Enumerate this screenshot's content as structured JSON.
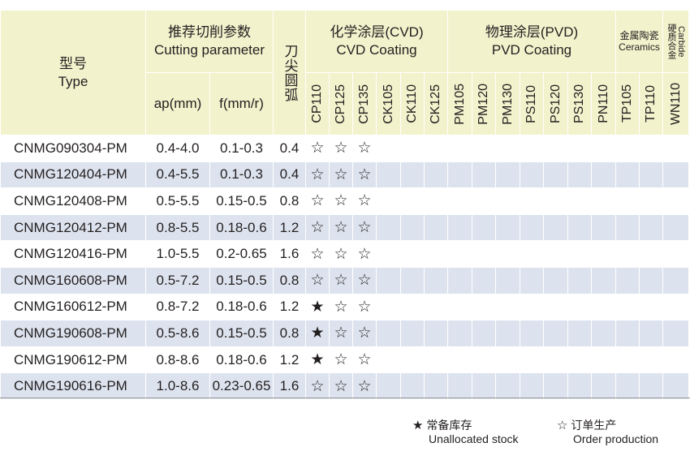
{
  "header": {
    "type_cn": "型号",
    "type_en": "Type",
    "cutting_cn": "推荐切削参数",
    "cutting_en": "Cutting parameter",
    "ap": "ap(mm)",
    "f": "f(mm/r)",
    "radius_cn": "刀尖圆弧",
    "cvd_cn": "化学涂层(CVD)",
    "cvd_en": "CVD Coating",
    "pvd_cn": "物理涂层(PVD)",
    "pvd_en": "PVD Coating",
    "ceramics_cn": "金属陶瓷",
    "ceramics_en": "Ceramics",
    "carbide_cn": "硬质合金",
    "carbide_en": "Carbide"
  },
  "grades": [
    "CP110",
    "CP125",
    "CP135",
    "CK105",
    "CK110",
    "CK125",
    "PM105",
    "PM120",
    "PM130",
    "PS110",
    "PS120",
    "PS130",
    "PN110",
    "TP105",
    "TP110",
    "WN110"
  ],
  "rows": [
    {
      "type": "CNMG090304-PM",
      "ap": "0.4-4.0",
      "f": "0.1-0.3",
      "r": "0.4",
      "marks": [
        "☆",
        "☆",
        "☆",
        "",
        "",
        "",
        "",
        "",
        "",
        "",
        "",
        "",
        "",
        "",
        "",
        ""
      ]
    },
    {
      "type": "CNMG120404-PM",
      "ap": "0.4-5.5",
      "f": "0.1-0.3",
      "r": "0.4",
      "marks": [
        "☆",
        "☆",
        "☆",
        "",
        "",
        "",
        "",
        "",
        "",
        "",
        "",
        "",
        "",
        "",
        "",
        ""
      ]
    },
    {
      "type": "CNMG120408-PM",
      "ap": "0.5-5.5",
      "f": "0.15-0.5",
      "r": "0.8",
      "marks": [
        "☆",
        "☆",
        "☆",
        "",
        "",
        "",
        "",
        "",
        "",
        "",
        "",
        "",
        "",
        "",
        "",
        ""
      ]
    },
    {
      "type": "CNMG120412-PM",
      "ap": "0.8-5.5",
      "f": "0.18-0.6",
      "r": "1.2",
      "marks": [
        "☆",
        "☆",
        "☆",
        "",
        "",
        "",
        "",
        "",
        "",
        "",
        "",
        "",
        "",
        "",
        "",
        ""
      ]
    },
    {
      "type": "CNMG120416-PM",
      "ap": "1.0-5.5",
      "f": "0.2-0.65",
      "r": "1.6",
      "marks": [
        "☆",
        "☆",
        "☆",
        "",
        "",
        "",
        "",
        "",
        "",
        "",
        "",
        "",
        "",
        "",
        "",
        ""
      ]
    },
    {
      "type": "CNMG160608-PM",
      "ap": "0.5-7.2",
      "f": "0.15-0.5",
      "r": "0.8",
      "marks": [
        "☆",
        "☆",
        "☆",
        "",
        "",
        "",
        "",
        "",
        "",
        "",
        "",
        "",
        "",
        "",
        "",
        ""
      ]
    },
    {
      "type": "CNMG160612-PM",
      "ap": "0.8-7.2",
      "f": "0.18-0.6",
      "r": "1.2",
      "marks": [
        "★",
        "☆",
        "☆",
        "",
        "",
        "",
        "",
        "",
        "",
        "",
        "",
        "",
        "",
        "",
        "",
        ""
      ]
    },
    {
      "type": "CNMG190608-PM",
      "ap": "0.5-8.6",
      "f": "0.15-0.5",
      "r": "0.8",
      "marks": [
        "★",
        "☆",
        "☆",
        "",
        "",
        "",
        "",
        "",
        "",
        "",
        "",
        "",
        "",
        "",
        "",
        ""
      ]
    },
    {
      "type": "CNMG190612-PM",
      "ap": "0.8-8.6",
      "f": "0.18-0.6",
      "r": "1.2",
      "marks": [
        "★",
        "☆",
        "☆",
        "",
        "",
        "",
        "",
        "",
        "",
        "",
        "",
        "",
        "",
        "",
        "",
        ""
      ]
    },
    {
      "type": "CNMG190616-PM",
      "ap": "1.0-8.6",
      "f": "0.23-0.65",
      "r": "1.6",
      "marks": [
        "☆",
        "☆",
        "☆",
        "",
        "",
        "",
        "",
        "",
        "",
        "",
        "",
        "",
        "",
        "",
        "",
        ""
      ]
    }
  ],
  "legend": {
    "stock_symbol": "★",
    "stock_cn": "常备库存",
    "stock_en": "Unallocated stock",
    "order_symbol": "☆",
    "order_cn": "订单生产",
    "order_en": "Order production"
  },
  "colors": {
    "header_bg": "#f2f2cc",
    "row_alt_bg": "#dde3ee",
    "text": "#231f20"
  }
}
